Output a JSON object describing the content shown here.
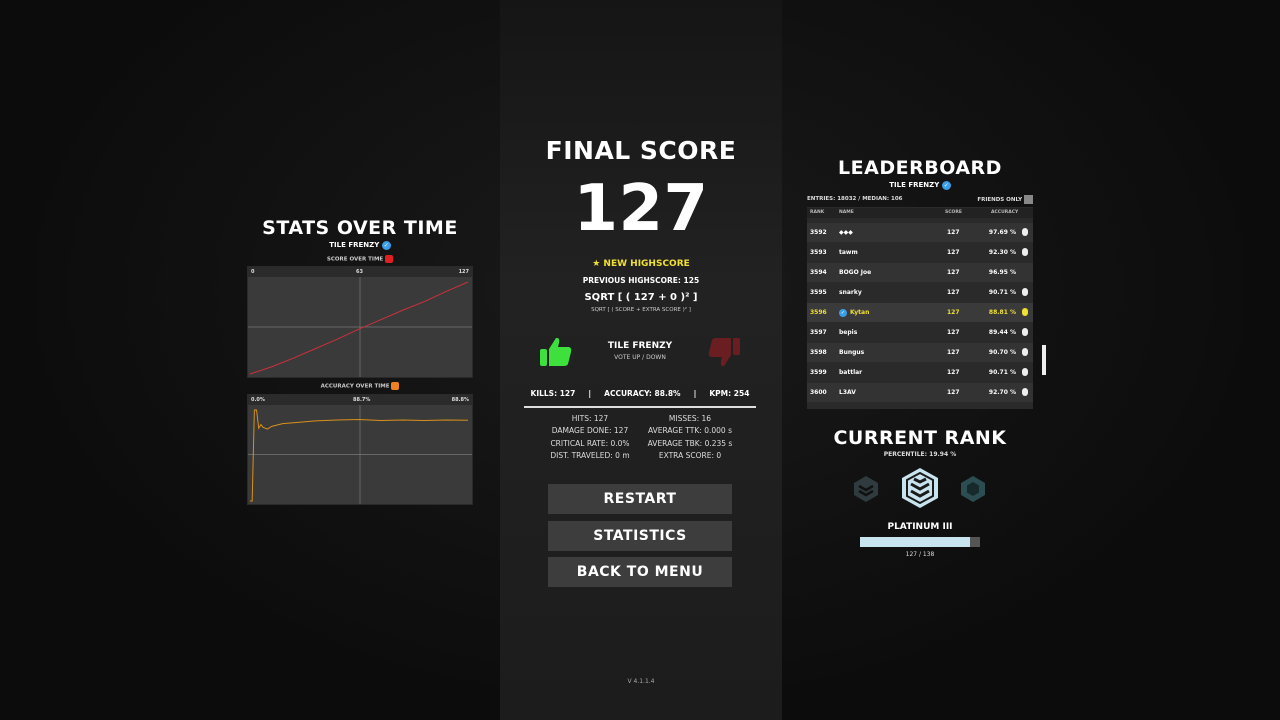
{
  "stats_panel": {
    "title": "STATS OVER TIME",
    "mode": "TILE FRENZY",
    "score_chart": {
      "label": "SCORE OVER TIME",
      "color": "#e02020",
      "line_color": "#c8323c",
      "ticks": [
        "0",
        "63",
        "127"
      ]
    },
    "accuracy_chart": {
      "label": "ACCURACY OVER TIME",
      "color": "#f08020",
      "line_color": "#d8901a",
      "ticks": [
        "0.0%",
        "88.7%",
        "88.8%"
      ]
    }
  },
  "chart_data": [
    {
      "type": "line",
      "title": "SCORE OVER TIME",
      "ylim": [
        0,
        127
      ],
      "x": [
        0,
        10,
        20,
        30,
        40,
        50,
        60,
        70,
        80,
        90,
        100
      ],
      "values": [
        0,
        10,
        22,
        35,
        48,
        62,
        75,
        88,
        100,
        114,
        127
      ]
    },
    {
      "type": "line",
      "title": "ACCURACY OVER TIME",
      "ylim": [
        0,
        100
      ],
      "x": [
        0,
        1,
        2,
        3,
        4,
        5,
        6,
        8,
        10,
        15,
        20,
        30,
        40,
        50,
        60,
        70,
        80,
        90,
        100
      ],
      "values": [
        0,
        0,
        100,
        100,
        80,
        84,
        81,
        79,
        82,
        85,
        86,
        88,
        89,
        89.5,
        88.5,
        89,
        88.5,
        89,
        88.8
      ]
    }
  ],
  "final": {
    "title": "FINAL SCORE",
    "score": "127",
    "highscore": "NEW HIGHSCORE",
    "previous": "PREVIOUS HIGHSCORE: 125",
    "formula": "SQRT [ ( 127 + 0 )² ]",
    "formula_legend": "SQRT [ ( SCORE + EXTRA SCORE )² ]",
    "mode": "TILE FRENZY",
    "vote": "VOTE UP / DOWN",
    "summary": [
      "KILLS: 127",
      "|",
      "ACCURACY: 88.8%",
      "|",
      "KPM: 254"
    ],
    "left_stats": [
      "HITS: 127",
      "DAMAGE DONE: 127",
      "CRITICAL RATE: 0.0%",
      "DIST. TRAVELED: 0 m"
    ],
    "right_stats": [
      "MISSES: 16",
      "AVERAGE TTK: 0.000 s",
      "AVERAGE TBK: 0.235 s",
      "EXTRA SCORE: 0"
    ],
    "buttons": {
      "restart": "RESTART",
      "statistics": "STATISTICS",
      "menu": "BACK TO MENU"
    },
    "version": "V 4.1.1.4",
    "up_color": "#3ee03e",
    "down_color": "#6a1e22",
    "highlight_color": "#f0e030"
  },
  "leaderboard": {
    "title": "LEADERBOARD",
    "mode": "TILE FRENZY",
    "entries": "ENTRIES: 18032 / MEDIAN: 106",
    "friends_only": "FRIENDS ONLY",
    "headers": [
      "RANK",
      "NAME",
      "SCORE",
      "ACCURACY"
    ],
    "rows": [
      {
        "rank": "3592",
        "name": "◆◆◆",
        "score": "127",
        "acc": "97.69 %",
        "mouse": true
      },
      {
        "rank": "3593",
        "name": "tawm",
        "score": "127",
        "acc": "92.30 %",
        "mouse": true
      },
      {
        "rank": "3594",
        "name": "BOGO Joe",
        "score": "127",
        "acc": "96.95 %",
        "mouse": false
      },
      {
        "rank": "3595",
        "name": "snarky",
        "score": "127",
        "acc": "90.71 %",
        "mouse": true
      },
      {
        "rank": "3596",
        "name": "Kytan",
        "score": "127",
        "acc": "88.81 %",
        "mouse": true,
        "self": true
      },
      {
        "rank": "3597",
        "name": "bepis",
        "score": "127",
        "acc": "89.44 %",
        "mouse": true
      },
      {
        "rank": "3598",
        "name": "Bungus",
        "score": "127",
        "acc": "90.70 %",
        "mouse": true
      },
      {
        "rank": "3599",
        "name": "battlar",
        "score": "127",
        "acc": "90.71 %",
        "mouse": true
      },
      {
        "rank": "3600",
        "name": "L3AV",
        "score": "127",
        "acc": "92.70 %",
        "mouse": true
      }
    ]
  },
  "rank": {
    "title": "CURRENT RANK",
    "percentile": "PERCENTILE: 19.94 %",
    "name": "PLATINUM III",
    "progress": "127 / 138",
    "progress_value": 127,
    "progress_max": 138,
    "color": "#c8e4ee"
  }
}
